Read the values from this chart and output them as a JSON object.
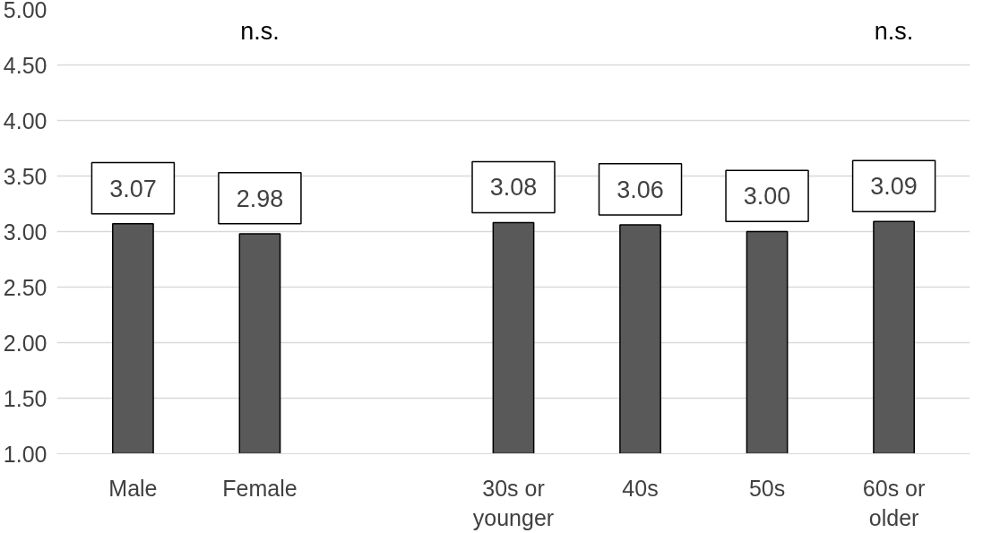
{
  "chart_data": {
    "type": "bar",
    "categories": [
      "Male",
      "Female",
      null,
      "30s or younger",
      "40s",
      "50s",
      "60s or older"
    ],
    "values": [
      3.07,
      2.98,
      null,
      3.08,
      3.06,
      3.0,
      3.09
    ],
    "color": "#595959",
    "ylim": [
      1.0,
      5.0
    ],
    "yticks": [
      {
        "value": 1.0,
        "label": "1.00"
      },
      {
        "value": 1.5,
        "label": "1.50"
      },
      {
        "value": 2.0,
        "label": "2.00"
      },
      {
        "value": 2.5,
        "label": "2.50"
      },
      {
        "value": 3.0,
        "label": "3.00"
      },
      {
        "value": 3.5,
        "label": "3.50"
      },
      {
        "value": 4.0,
        "label": "4.00"
      },
      {
        "value": 4.5,
        "label": "4.50"
      },
      {
        "value": 5.0,
        "label": "5.00"
      }
    ],
    "grid": "y",
    "value_labels": [
      "3.07",
      "2.98",
      null,
      "3.08",
      "3.06",
      "3.00",
      "3.09"
    ],
    "annotations": [
      "n.s.",
      "n.s."
    ]
  }
}
